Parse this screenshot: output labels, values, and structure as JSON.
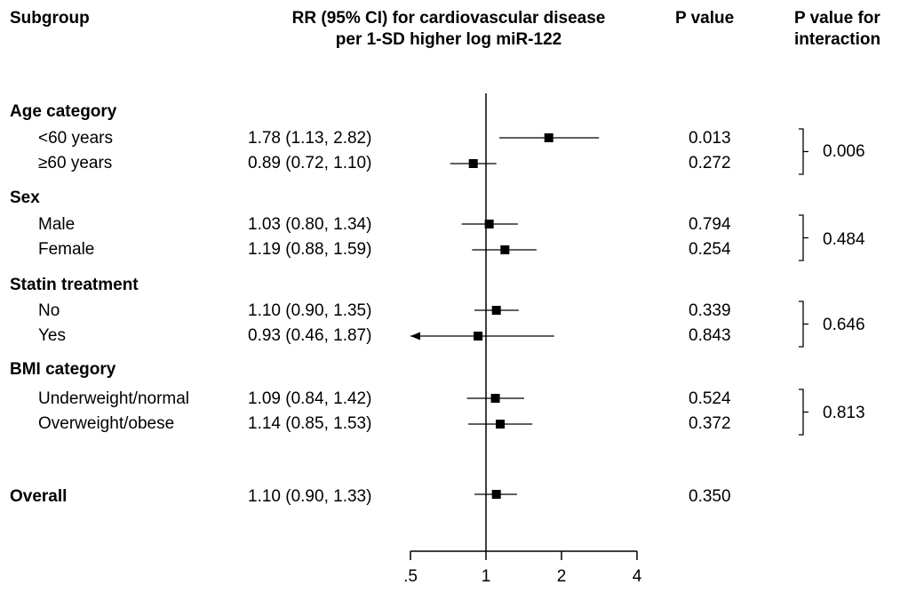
{
  "headers": {
    "subgroup": "Subgroup",
    "rr_line1": "RR (95% CI) for cardiovascular disease",
    "rr_line2": "per 1-SD higher log miR-122",
    "pvalue": "P value",
    "pinter_line1": "P value for",
    "pinter_line2": "interaction"
  },
  "groups": [
    {
      "label": "Age category",
      "interaction_p": "0.006",
      "rows": [
        {
          "label": "<60 years",
          "ci_text": "1.78 (1.13, 2.82)",
          "p": "0.013"
        },
        {
          "label": "≥60 years",
          "ci_text": "0.89 (0.72, 1.10)",
          "p": "0.272"
        }
      ]
    },
    {
      "label": "Sex",
      "interaction_p": "0.484",
      "rows": [
        {
          "label": "Male",
          "ci_text": "1.03 (0.80, 1.34)",
          "p": "0.794"
        },
        {
          "label": "Female",
          "ci_text": "1.19 (0.88, 1.59)",
          "p": "0.254"
        }
      ]
    },
    {
      "label": "Statin treatment",
      "interaction_p": "0.646",
      "rows": [
        {
          "label": "No",
          "ci_text": "1.10 (0.90, 1.35)",
          "p": "0.339"
        },
        {
          "label": "Yes",
          "ci_text": "0.93 (0.46, 1.87)",
          "p": "0.843"
        }
      ]
    },
    {
      "label": "BMI category",
      "interaction_p": "0.813",
      "rows": [
        {
          "label": "Underweight/normal",
          "ci_text": "1.09 (0.84, 1.42)",
          "p": "0.524"
        },
        {
          "label": "Overweight/obese",
          "ci_text": "1.14 (0.85, 1.53)",
          "p": "0.372"
        }
      ]
    }
  ],
  "overall": {
    "label": "Overall",
    "ci_text": "1.10 (0.90, 1.33)",
    "p": "0.350"
  },
  "chart_data": {
    "type": "forest",
    "x_scale": "log",
    "xlim": [
      0.5,
      4
    ],
    "reference_line": 1,
    "x_ticks": [
      {
        "value": 0.5,
        "label": ".5"
      },
      {
        "value": 1,
        "label": "1"
      },
      {
        "value": 2,
        "label": "2"
      },
      {
        "value": 4,
        "label": "4"
      }
    ],
    "points": [
      {
        "label": "<60 years",
        "est": 1.78,
        "lo": 1.13,
        "hi": 2.82
      },
      {
        "label": "≥60 years",
        "est": 0.89,
        "lo": 0.72,
        "hi": 1.1
      },
      {
        "label": "Male",
        "est": 1.03,
        "lo": 0.8,
        "hi": 1.34
      },
      {
        "label": "Female",
        "est": 1.19,
        "lo": 0.88,
        "hi": 1.59
      },
      {
        "label": "No",
        "est": 1.1,
        "lo": 0.9,
        "hi": 1.35
      },
      {
        "label": "Yes",
        "est": 0.93,
        "lo": 0.46,
        "hi": 1.87,
        "lo_truncated": true
      },
      {
        "label": "Underweight/normal",
        "est": 1.09,
        "lo": 0.84,
        "hi": 1.42
      },
      {
        "label": "Overweight/obese",
        "est": 1.14,
        "lo": 0.85,
        "hi": 1.53
      },
      {
        "label": "Overall",
        "est": 1.1,
        "lo": 0.9,
        "hi": 1.33
      }
    ]
  }
}
